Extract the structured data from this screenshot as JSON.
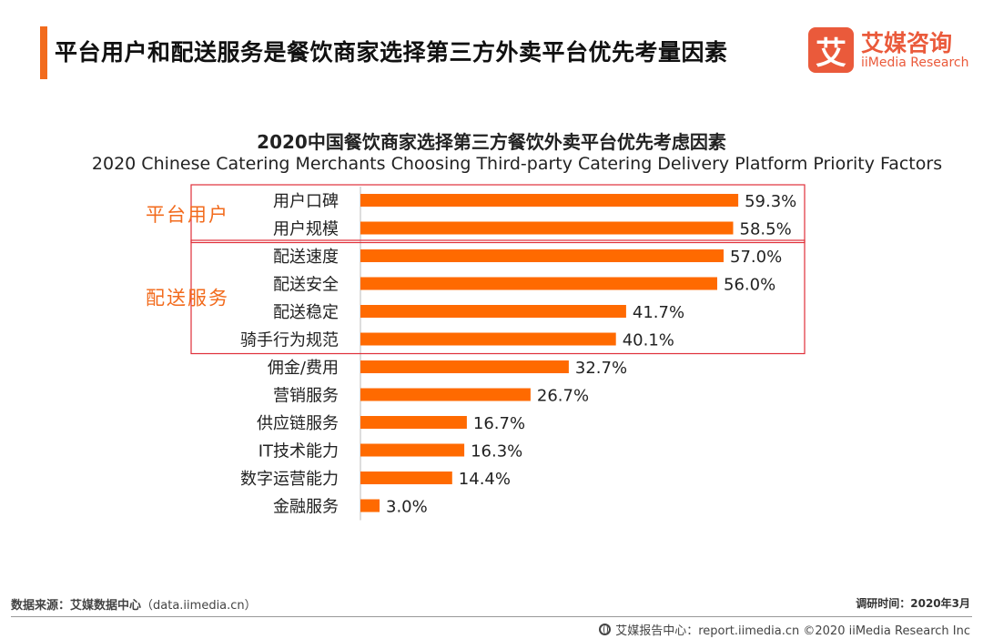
{
  "header": {
    "headline": "平台用户和配送服务是餐饮商家选择第三方外卖平台优先考量因素"
  },
  "logo": {
    "mark": "艾",
    "name_cn": "艾媒咨询",
    "name_en": "iiMedia Research"
  },
  "colors": {
    "accent": "#f26b1d",
    "bar": "#ff6a00",
    "group_box": "#e0303a",
    "group_label": "#f26b1d"
  },
  "chart_data": {
    "type": "bar",
    "orientation": "horizontal",
    "title": "2020中国餐饮商家选择第三方餐饮外卖平台优先考虑因素",
    "subtitle": "2020 Chinese Catering Merchants Choosing Third-party Catering Delivery Platform Priority Factors",
    "categories": [
      "用户口碑",
      "用户规模",
      "配送速度",
      "配送安全",
      "配送稳定",
      "骑手行为规范",
      "佣金/费用",
      "营销服务",
      "供应链服务",
      "IT技术能力",
      "数字运营能力",
      "金融服务"
    ],
    "values": [
      59.3,
      58.5,
      57.0,
      56.0,
      41.7,
      40.1,
      32.7,
      26.7,
      16.7,
      16.3,
      14.4,
      3.0
    ],
    "labels": [
      "59.3%",
      "58.5%",
      "57.0%",
      "56.0%",
      "41.7%",
      "40.1%",
      "32.7%",
      "26.7%",
      "16.7%",
      "16.3%",
      "14.4%",
      "3.0%"
    ],
    "xlim": [
      0,
      70
    ],
    "unit": "%",
    "groups": [
      {
        "name": "平台用户",
        "from": 0,
        "to": 1
      },
      {
        "name": "配送服务",
        "from": 2,
        "to": 5
      }
    ],
    "grid": false,
    "legend": "none"
  },
  "footer": {
    "source_label": "数据来源：艾媒数据中心",
    "source_url": "（data.iimedia.cn）",
    "date": "调研时间：2020年3月",
    "copyright": "艾媒报告中心：report.iimedia.cn ©2020  iiMedia Research  Inc"
  }
}
